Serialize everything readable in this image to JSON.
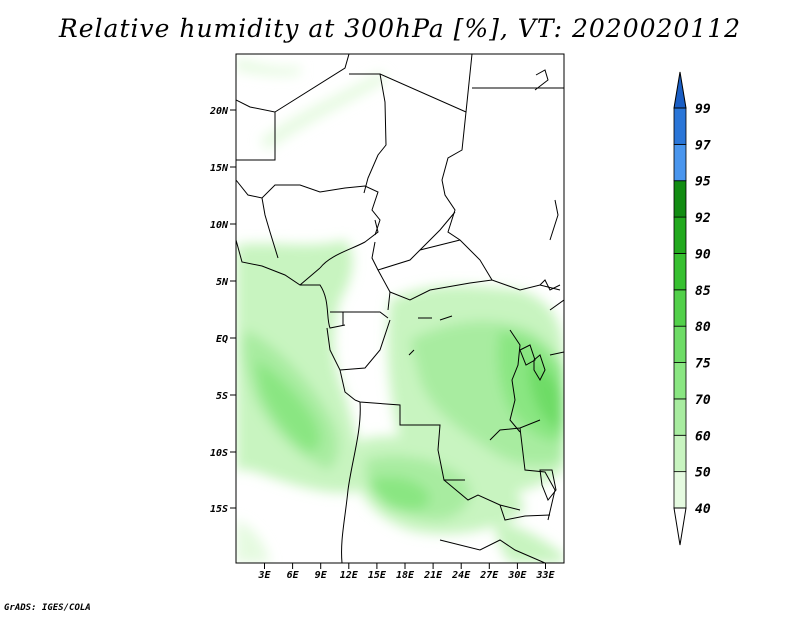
{
  "title": "Relative humidity at 300hPa [%], VT: 2020020112",
  "footer": "GrADS: IGES/COLA",
  "map": {
    "lat_ticks": [
      "20N",
      "15N",
      "10N",
      "5N",
      "EQ",
      "5S",
      "10S",
      "15S"
    ],
    "lon_ticks": [
      "3E",
      "6E",
      "9E",
      "12E",
      "15E",
      "18E",
      "21E",
      "24E",
      "27E",
      "30E",
      "33E"
    ]
  },
  "colorbar": {
    "levels": [
      "40",
      "50",
      "60",
      "70",
      "75",
      "80",
      "85",
      "90",
      "92",
      "95",
      "97",
      "99"
    ],
    "colors": [
      "#ffffff",
      "#e5fae0",
      "#c8f4c0",
      "#a8eca0",
      "#8ae682",
      "#6edc66",
      "#52d04a",
      "#37c030",
      "#22a91e",
      "#128c12",
      "#4a96ee",
      "#2a76d8",
      "#1a5ec4"
    ]
  }
}
